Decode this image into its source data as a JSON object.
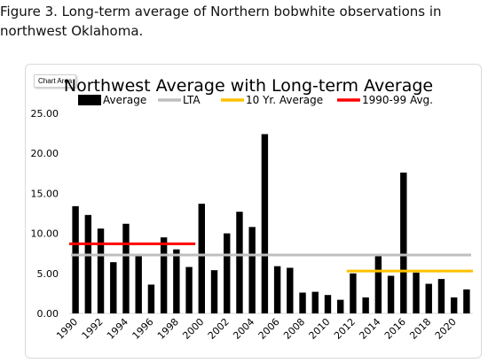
{
  "caption": "Figure 3. Long-term average of Northern bobwhite observations in northwest Oklahoma.",
  "chart_area_label": "Chart Area",
  "chart_data": {
    "type": "bar",
    "title": "Northwest Average with Long-term Average",
    "legend": [
      {
        "name": "Average",
        "color": "#000000",
        "marker": "bar"
      },
      {
        "name": "LTA",
        "color": "#bfbfbf",
        "marker": "line"
      },
      {
        "name": "10 Yr. Average",
        "color": "#ffc000",
        "marker": "line"
      },
      {
        "name": "1990-99 Avg.",
        "color": "#ff0000",
        "marker": "line"
      }
    ],
    "legend_position": "top",
    "categories": [
      1990,
      1991,
      1992,
      1993,
      1994,
      1995,
      1996,
      1997,
      1998,
      1999,
      2000,
      2001,
      2002,
      2003,
      2004,
      2005,
      2006,
      2007,
      2008,
      2009,
      2010,
      2011,
      2012,
      2013,
      2014,
      2015,
      2016,
      2017,
      2018,
      2019,
      2020,
      2021
    ],
    "x_tick_labels": [
      "1990",
      "1992",
      "1994",
      "1996",
      "1998",
      "2000",
      "2002",
      "2004",
      "2006",
      "2008",
      "2010",
      "2012",
      "2014",
      "2016",
      "2018",
      "2020"
    ],
    "series": [
      {
        "name": "Average",
        "values": [
          13.4,
          12.3,
          10.6,
          6.4,
          11.2,
          7.2,
          3.6,
          9.5,
          8.0,
          5.8,
          13.7,
          5.4,
          10.0,
          12.7,
          10.8,
          22.4,
          5.9,
          5.7,
          2.6,
          2.7,
          2.3,
          1.7,
          5.0,
          2.0,
          7.2,
          4.7,
          17.6,
          5.1,
          3.7,
          4.3,
          2.0,
          3.0
        ]
      },
      {
        "name": "LTA",
        "value": 7.3,
        "x_range": [
          1990,
          2021
        ]
      },
      {
        "name": "10 Yr. Average",
        "value": 5.3,
        "x_range": [
          2012,
          2021
        ]
      },
      {
        "name": "1990-99 Avg.",
        "value": 8.7,
        "x_range": [
          1990,
          1999
        ]
      }
    ],
    "y_tick_labels": [
      "0.00",
      "5.00",
      "10.00",
      "15.00",
      "20.00",
      "25.00"
    ],
    "ylim": [
      0,
      25
    ],
    "grid": false
  }
}
